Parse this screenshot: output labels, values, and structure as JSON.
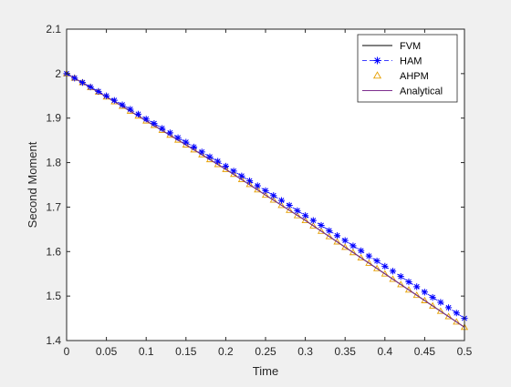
{
  "chart_data": {
    "type": "line",
    "title": "",
    "xlabel": "Time",
    "ylabel": "Second Moment",
    "xlim": [
      0,
      0.5
    ],
    "ylim": [
      1.4,
      2.1
    ],
    "grid": false,
    "legend_placement": "top-right",
    "xticks": [
      0,
      0.05,
      0.1,
      0.15,
      0.2,
      0.25,
      0.3,
      0.35,
      0.4,
      0.45,
      0.5
    ],
    "xtick_labels": [
      "0",
      "0.05",
      "0.1",
      "0.15",
      "0.2",
      "0.25",
      "0.3",
      "0.35",
      "0.4",
      "0.45",
      "0.5"
    ],
    "yticks": [
      1.4,
      1.5,
      1.6,
      1.7,
      1.8,
      1.9,
      2.0,
      2.1
    ],
    "ytick_labels": [
      "1.4",
      "1.5",
      "1.6",
      "1.7",
      "1.8",
      "1.9",
      "2",
      "2.1"
    ],
    "series": [
      {
        "name": "FVM",
        "style": "line",
        "color": "#000000",
        "x": [
          0,
          0.05,
          0.1,
          0.15,
          0.2,
          0.25,
          0.3,
          0.35,
          0.4,
          0.45,
          0.5
        ],
        "y": [
          2.0,
          1.948,
          1.894,
          1.84,
          1.785,
          1.727,
          1.67,
          1.61,
          1.55,
          1.49,
          1.43
        ]
      },
      {
        "name": "HAM",
        "style": "dashed-star",
        "color": "#0000ff",
        "x": [
          0,
          0.01,
          0.02,
          0.03,
          0.04,
          0.05,
          0.06,
          0.07,
          0.08,
          0.09,
          0.1,
          0.11,
          0.12,
          0.13,
          0.14,
          0.15,
          0.16,
          0.17,
          0.18,
          0.19,
          0.2,
          0.21,
          0.22,
          0.23,
          0.24,
          0.25,
          0.26,
          0.27,
          0.28,
          0.29,
          0.3,
          0.31,
          0.32,
          0.33,
          0.34,
          0.35,
          0.36,
          0.37,
          0.38,
          0.39,
          0.4,
          0.41,
          0.42,
          0.43,
          0.44,
          0.45,
          0.46,
          0.47,
          0.48,
          0.49,
          0.5
        ],
        "y": [
          2.0,
          1.99,
          1.98,
          1.97,
          1.96,
          1.95,
          1.94,
          1.93,
          1.92,
          1.909,
          1.898,
          1.888,
          1.877,
          1.867,
          1.856,
          1.846,
          1.835,
          1.824,
          1.813,
          1.803,
          1.792,
          1.781,
          1.77,
          1.759,
          1.748,
          1.737,
          1.726,
          1.715,
          1.704,
          1.692,
          1.681,
          1.67,
          1.659,
          1.647,
          1.636,
          1.625,
          1.613,
          1.602,
          1.59,
          1.579,
          1.567,
          1.556,
          1.544,
          1.532,
          1.521,
          1.509,
          1.497,
          1.486,
          1.474,
          1.462,
          1.45
        ]
      },
      {
        "name": "AHPM",
        "style": "triangle",
        "color": "#e69f00",
        "x": [
          0,
          0.01,
          0.02,
          0.03,
          0.04,
          0.05,
          0.06,
          0.07,
          0.08,
          0.09,
          0.1,
          0.11,
          0.12,
          0.13,
          0.14,
          0.15,
          0.16,
          0.17,
          0.18,
          0.19,
          0.2,
          0.21,
          0.22,
          0.23,
          0.24,
          0.25,
          0.26,
          0.27,
          0.28,
          0.29,
          0.3,
          0.31,
          0.32,
          0.33,
          0.34,
          0.35,
          0.36,
          0.37,
          0.38,
          0.39,
          0.4,
          0.41,
          0.42,
          0.43,
          0.44,
          0.45,
          0.46,
          0.47,
          0.48,
          0.49,
          0.5
        ],
        "y": [
          2.0,
          1.99,
          1.98,
          1.969,
          1.959,
          1.948,
          1.937,
          1.927,
          1.916,
          1.905,
          1.894,
          1.884,
          1.873,
          1.862,
          1.851,
          1.84,
          1.829,
          1.818,
          1.807,
          1.796,
          1.785,
          1.774,
          1.762,
          1.751,
          1.739,
          1.727,
          1.716,
          1.704,
          1.693,
          1.681,
          1.67,
          1.658,
          1.646,
          1.634,
          1.622,
          1.61,
          1.598,
          1.586,
          1.574,
          1.562,
          1.55,
          1.538,
          1.526,
          1.514,
          1.502,
          1.49,
          1.478,
          1.466,
          1.454,
          1.442,
          1.43
        ]
      },
      {
        "name": "Analytical",
        "style": "line",
        "color": "#7e2f8e",
        "x": [
          0,
          0.05,
          0.1,
          0.15,
          0.2,
          0.25,
          0.3,
          0.35,
          0.4,
          0.45,
          0.5
        ],
        "y": [
          2.0,
          1.948,
          1.894,
          1.84,
          1.785,
          1.727,
          1.67,
          1.61,
          1.55,
          1.49,
          1.43
        ]
      }
    ]
  }
}
